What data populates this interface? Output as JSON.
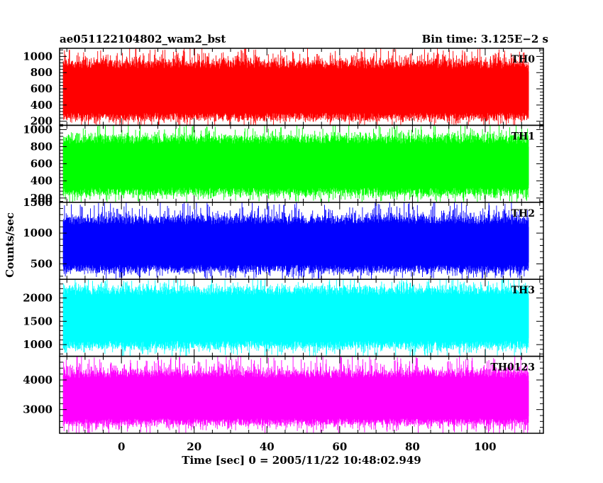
{
  "chart_data": {
    "type": "line",
    "title": "ae051122104802_wam2_bst",
    "subtitle": "Bin time: 3.125E−2 s",
    "xlabel": "Time [sec] 0 = 2005/11/22 10:48:02.949",
    "ylabel": "Counts/sec",
    "xlim": [
      -17,
      116
    ],
    "x_data_range": [
      -16,
      112
    ],
    "xticks": [
      0,
      20,
      40,
      60,
      80,
      100
    ],
    "xtick_labels": [
      "0",
      "20",
      "40",
      "60",
      "80",
      "100"
    ],
    "grid": false,
    "panels": [
      {
        "name": "TH0",
        "color": "#ff0000",
        "ylim": [
          150,
          1100
        ],
        "yticks": [
          200,
          400,
          600,
          800,
          1000
        ],
        "ytick_labels": [
          "200",
          "400",
          "600",
          "800",
          "1000"
        ],
        "mean": 560,
        "band": [
          260,
          900
        ],
        "peak_range": [
          150,
          1100
        ]
      },
      {
        "name": "TH1",
        "color": "#00ff00",
        "ylim": [
          150,
          1050
        ],
        "yticks": [
          200,
          400,
          600,
          800,
          1000
        ],
        "ytick_labels": [
          "200",
          "400",
          "600",
          "800",
          "1000"
        ],
        "mean": 560,
        "band": [
          280,
          880
        ],
        "peak_range": [
          150,
          1050
        ]
      },
      {
        "name": "TH2",
        "color": "#0000ff",
        "ylim": [
          250,
          1500
        ],
        "yticks": [
          500,
          1000,
          1500
        ],
        "ytick_labels": [
          "500",
          "1000",
          "1500"
        ],
        "mean": 800,
        "band": [
          430,
          1200
        ],
        "peak_range": [
          250,
          1500
        ]
      },
      {
        "name": "TH3",
        "color": "#00ffff",
        "ylim": [
          750,
          2400
        ],
        "yticks": [
          1000,
          1500,
          2000
        ],
        "ytick_labels": [
          "1000",
          "1500",
          "2000"
        ],
        "mean": 1550,
        "band": [
          1000,
          2150
        ],
        "peak_range": [
          750,
          2400
        ]
      },
      {
        "name": "TH0123",
        "color": "#ff00ff",
        "ylim": [
          2200,
          4800
        ],
        "yticks": [
          3000,
          4000
        ],
        "ytick_labels": [
          "3000",
          "4000"
        ],
        "mean": 3300,
        "band": [
          2600,
          4200
        ],
        "peak_range": [
          2200,
          4800
        ]
      }
    ]
  }
}
